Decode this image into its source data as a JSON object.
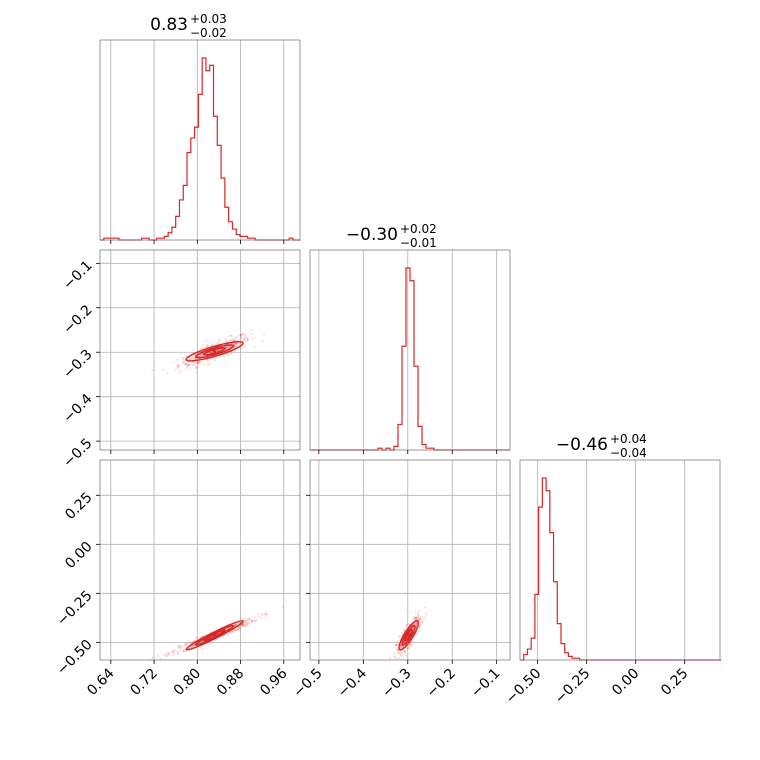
{
  "chart_data": {
    "type": "corner",
    "color": "#d62728",
    "parameters": [
      {
        "title_value": "0.83",
        "err_plus": "+0.03",
        "err_minus": "−0.02"
      },
      {
        "title_value": "−0.30",
        "err_plus": "+0.02",
        "err_minus": "−0.01"
      },
      {
        "title_value": "−0.46",
        "err_plus": "+0.04",
        "err_minus": "−0.04"
      }
    ],
    "ranges": [
      [
        0.62,
        0.99
      ],
      [
        -0.52,
        -0.07
      ],
      [
        -0.59,
        0.43
      ]
    ],
    "ticks": [
      {
        "values": [
          0.64,
          0.72,
          0.8,
          0.88,
          0.96
        ],
        "labels": [
          "0.64",
          "0.72",
          "0.80",
          "0.88",
          "0.96"
        ]
      },
      {
        "values": [
          -0.5,
          -0.4,
          -0.3,
          -0.2,
          -0.1
        ],
        "labels": [
          "−0.5",
          "−0.4",
          "−0.3",
          "−0.2",
          "−0.1"
        ]
      },
      {
        "values": [
          -0.5,
          -0.25,
          0.0,
          0.25
        ],
        "labels": [
          "−0.50",
          "−0.25",
          "0.00",
          "0.25"
        ]
      }
    ],
    "histograms": [
      {
        "param": 0,
        "bin_edges": [
          0.62,
          0.627,
          0.634,
          0.641,
          0.648,
          0.655,
          0.662,
          0.669,
          0.676,
          0.683,
          0.69,
          0.697,
          0.704,
          0.711,
          0.718,
          0.725,
          0.732,
          0.739,
          0.746,
          0.753,
          0.76,
          0.767,
          0.774,
          0.781,
          0.788,
          0.795,
          0.802,
          0.809,
          0.816,
          0.823,
          0.83,
          0.837,
          0.844,
          0.851,
          0.858,
          0.865,
          0.872,
          0.879,
          0.886,
          0.893,
          0.9,
          0.907,
          0.914,
          0.921,
          0.928,
          0.935,
          0.942,
          0.949,
          0.956,
          0.963,
          0.97,
          0.977,
          0.984,
          0.991
        ],
        "counts": [
          0,
          1,
          1,
          1,
          1,
          0,
          0,
          0,
          0,
          0,
          0,
          1,
          1,
          0,
          0,
          1,
          1,
          2,
          4,
          7,
          13,
          22,
          30,
          48,
          56,
          62,
          80,
          100,
          93,
          96,
          68,
          52,
          34,
          18,
          10,
          6,
          3,
          2,
          2,
          1,
          1,
          0,
          0,
          0,
          0,
          0,
          0,
          0,
          0,
          0,
          1,
          0,
          0
        ]
      },
      {
        "param": 1,
        "bin_edges": [
          -0.52,
          -0.511,
          -0.502,
          -0.493,
          -0.484,
          -0.475,
          -0.466,
          -0.457,
          -0.448,
          -0.439,
          -0.43,
          -0.421,
          -0.412,
          -0.403,
          -0.394,
          -0.385,
          -0.376,
          -0.367,
          -0.358,
          -0.349,
          -0.34,
          -0.331,
          -0.322,
          -0.313,
          -0.304,
          -0.295,
          -0.286,
          -0.277,
          -0.268,
          -0.259,
          -0.25,
          -0.241,
          -0.232,
          -0.223,
          -0.214,
          -0.205,
          -0.196,
          -0.187,
          -0.178,
          -0.169,
          -0.16,
          -0.151,
          -0.142,
          -0.133,
          -0.124,
          -0.115,
          -0.106,
          -0.097,
          -0.088,
          -0.079,
          -0.07
        ],
        "counts": [
          0,
          0,
          0,
          0,
          0,
          0,
          0,
          0,
          0,
          0,
          0,
          0,
          0,
          0,
          0,
          0,
          0,
          1,
          0,
          1,
          0,
          2,
          14,
          57,
          100,
          93,
          46,
          13,
          3,
          1,
          1,
          0,
          0,
          0,
          0,
          0,
          0,
          0,
          0,
          0,
          0,
          0,
          0,
          0,
          0,
          0,
          0,
          0,
          0,
          0
        ]
      },
      {
        "param": 2,
        "bin_edges": [
          -0.59,
          -0.571,
          -0.552,
          -0.533,
          -0.514,
          -0.495,
          -0.476,
          -0.457,
          -0.438,
          -0.419,
          -0.4,
          -0.381,
          -0.362,
          -0.343,
          -0.324,
          -0.305,
          -0.286,
          -0.267,
          -0.248,
          -0.229,
          -0.21,
          -0.191,
          -0.172,
          -0.153,
          -0.134,
          -0.115,
          -0.096,
          -0.077,
          -0.058,
          -0.039,
          -0.02,
          -0.001,
          0.018,
          0.037,
          0.056,
          0.075,
          0.094,
          0.113,
          0.132,
          0.151,
          0.17,
          0.189,
          0.208,
          0.227,
          0.246,
          0.265,
          0.284,
          0.303,
          0.322,
          0.341,
          0.36,
          0.379,
          0.398,
          0.417,
          0.436
        ],
        "counts": [
          0,
          3,
          6,
          12,
          36,
          84,
          100,
          93,
          70,
          43,
          20,
          9,
          4,
          2,
          1,
          1,
          0,
          0,
          0,
          0,
          0,
          0,
          0,
          0,
          0,
          0,
          0,
          0,
          0,
          0,
          0,
          0,
          0,
          0,
          0,
          0,
          0,
          0,
          0,
          0,
          0,
          0,
          0,
          0,
          0,
          0,
          0,
          0,
          0,
          0,
          0,
          0,
          0,
          0
        ]
      }
    ],
    "pairs": [
      {
        "x_param": 0,
        "y_param": 1,
        "center": [
          0.832,
          -0.298
        ],
        "sigma": [
          0.022,
          0.009
        ],
        "rho": 0.85,
        "spread": [
          0.033,
          0.018
        ]
      },
      {
        "x_param": 0,
        "y_param": 2,
        "center": [
          0.832,
          -0.464
        ],
        "sigma": [
          0.022,
          0.031
        ],
        "rho": 0.97,
        "spread": [
          0.04,
          0.045
        ]
      },
      {
        "x_param": 1,
        "y_param": 2,
        "center": [
          -0.298,
          -0.464
        ],
        "sigma": [
          0.009,
          0.031
        ],
        "rho": 0.85,
        "spread": [
          0.014,
          0.05
        ]
      }
    ],
    "grid": true
  }
}
